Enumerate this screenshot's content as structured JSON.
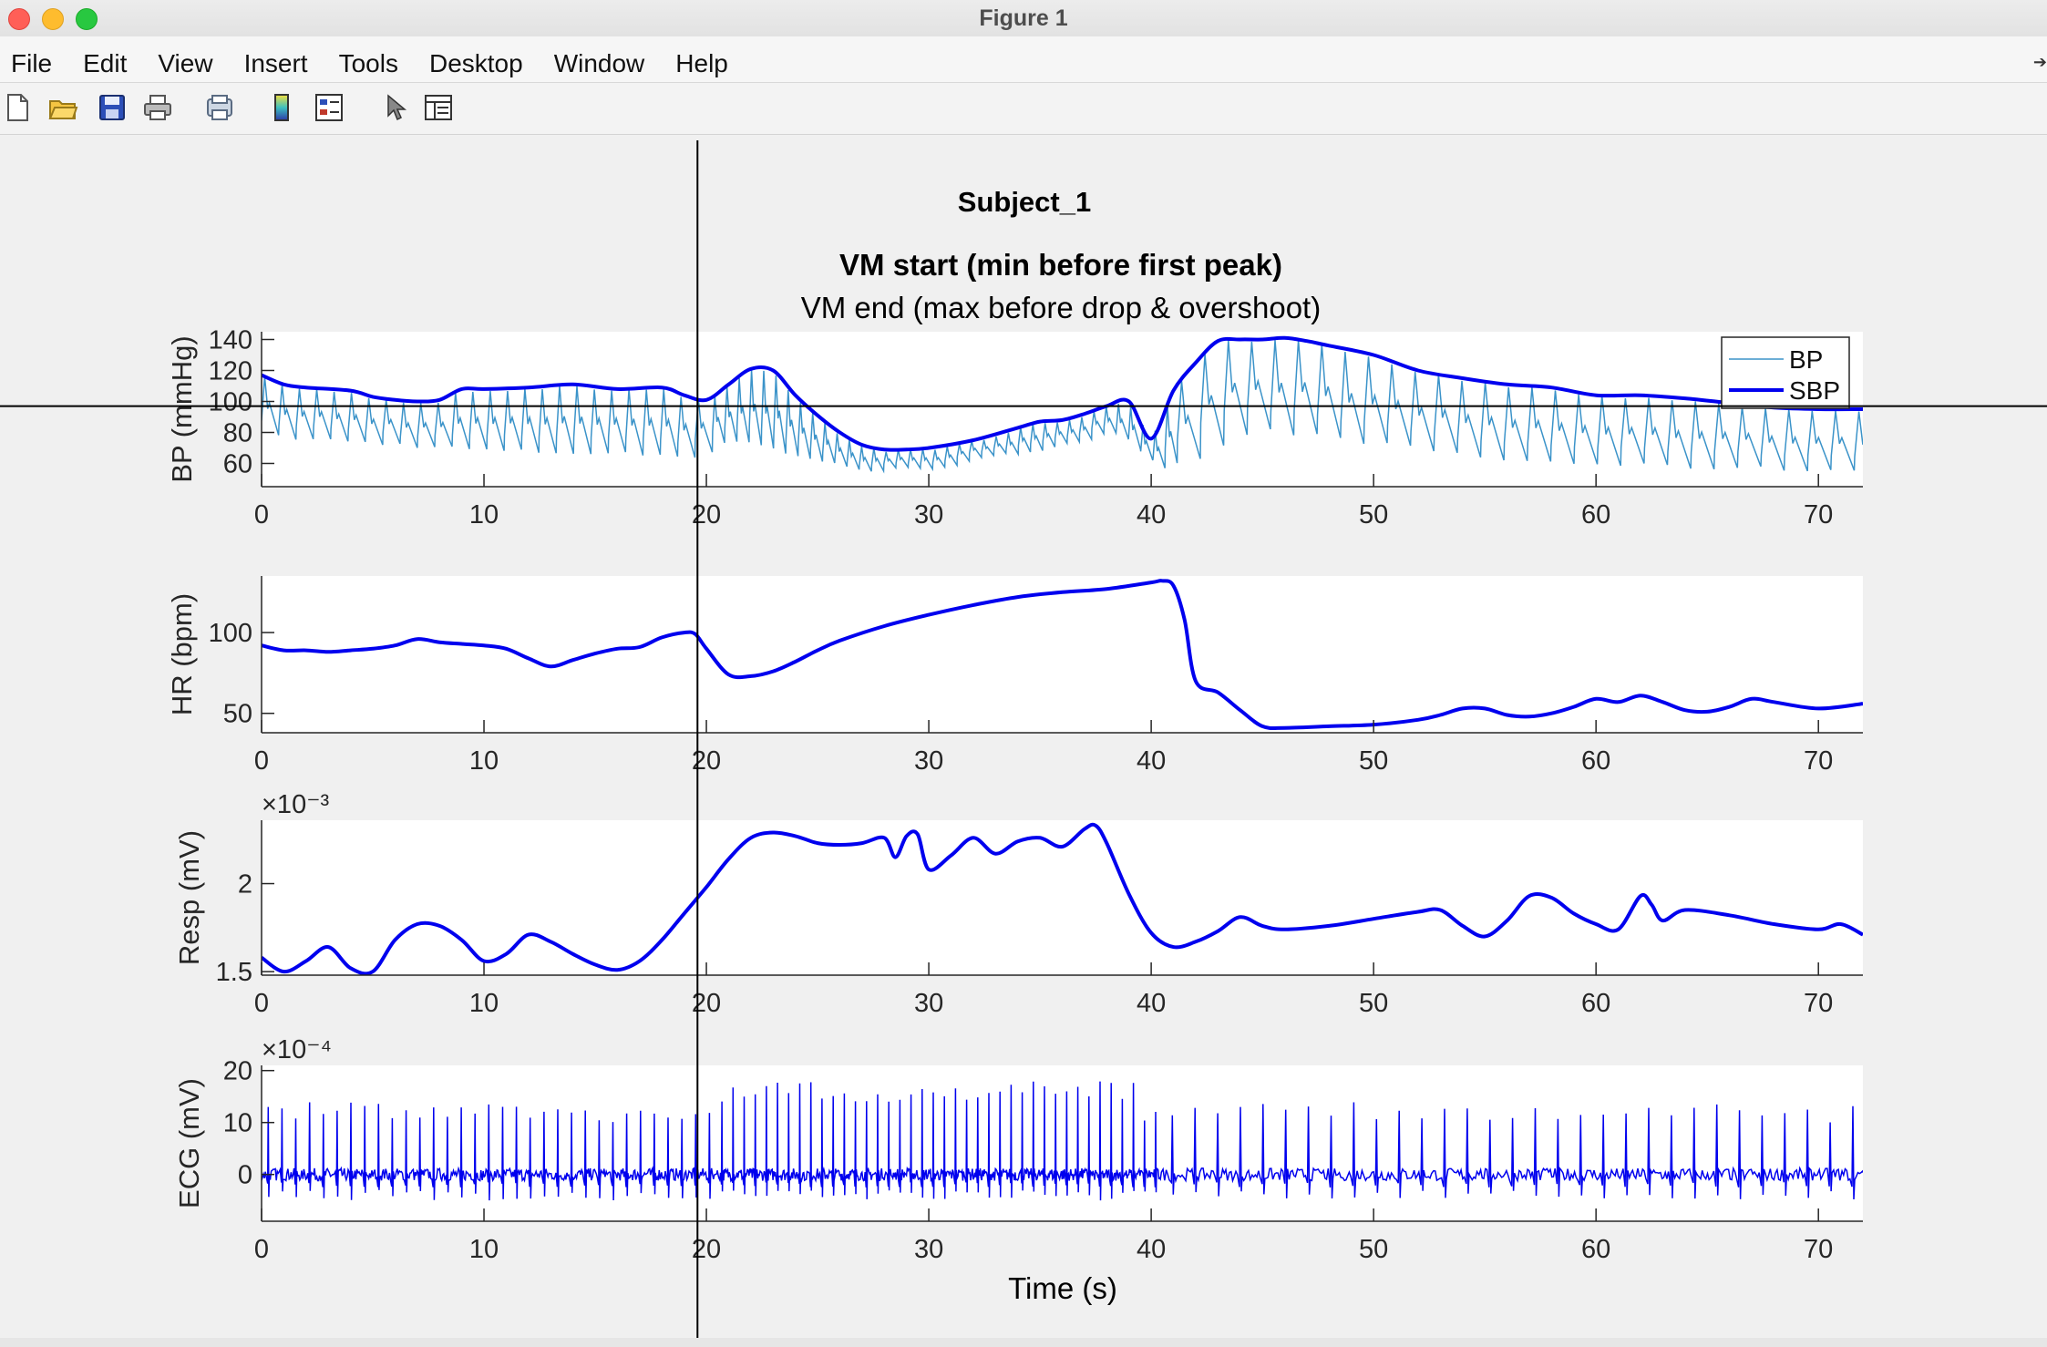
{
  "window": {
    "title": "Figure 1"
  },
  "menu": [
    "File",
    "Edit",
    "View",
    "Insert",
    "Tools",
    "Desktop",
    "Window",
    "Help"
  ],
  "toolbar_icons": [
    "new-figure-icon",
    "open-file-icon",
    "save-icon",
    "print-icon",
    "print-preview-icon",
    "colorbar-icon",
    "legend-icon",
    "pointer-icon",
    "property-inspector-icon"
  ],
  "figure": {
    "title": "Subject_1",
    "subtitle1": "VM start (min before first peak)",
    "subtitle2": "VM end (max before drop & overshoot)",
    "xlabel": "Time (s)",
    "crosshair": {
      "x": 19.6,
      "y_bp": 97
    }
  },
  "chart_data": [
    {
      "type": "line",
      "ylabel": "BP (mmHg)",
      "xlim": [
        0,
        72
      ],
      "ylim": [
        45,
        145
      ],
      "yticks": [
        60,
        80,
        100,
        120,
        140
      ],
      "xticks": [
        0,
        10,
        20,
        30,
        40,
        50,
        60,
        70
      ],
      "legend": {
        "position": "top-right",
        "entries": [
          "BP",
          "SBP"
        ]
      },
      "series": [
        {
          "name": "BP",
          "color": "#3b93c9",
          "width": 1.5,
          "generated": "pulsatile between SBP envelope and diastolic trace"
        },
        {
          "name": "SBP",
          "color": "#0000ee",
          "width": 4,
          "x": [
            0,
            1,
            2,
            4,
            5,
            6,
            7,
            8,
            9,
            10,
            12,
            14,
            16,
            18,
            19,
            20,
            21,
            22,
            23,
            24,
            25,
            26,
            27,
            28,
            29,
            30,
            32,
            34,
            35,
            36,
            37,
            38,
            39,
            40,
            41,
            42,
            43,
            44,
            45,
            46,
            47,
            48,
            50,
            52,
            54,
            56,
            58,
            60,
            62,
            64,
            66,
            68,
            70,
            72
          ],
          "y": [
            117,
            111,
            109,
            107,
            103,
            101,
            100,
            101,
            108,
            108,
            109,
            111,
            108,
            109,
            104,
            101,
            111,
            121,
            120,
            104,
            91,
            80,
            72,
            69,
            69,
            70,
            75,
            83,
            87,
            88,
            92,
            97,
            100,
            76,
            107,
            125,
            139,
            140,
            140,
            141,
            139,
            136,
            130,
            120,
            115,
            111,
            109,
            104,
            104,
            102,
            99,
            96,
            95,
            95
          ]
        }
      ]
    },
    {
      "type": "line",
      "ylabel": "HR (bpm)",
      "xlim": [
        0,
        72
      ],
      "ylim": [
        38,
        135
      ],
      "yticks": [
        50,
        100
      ],
      "xticks": [
        0,
        10,
        20,
        30,
        40,
        50,
        60,
        70
      ],
      "series": [
        {
          "name": "",
          "color": "#0000ee",
          "width": 4,
          "x": [
            0,
            1,
            2,
            3,
            4,
            5,
            6,
            7,
            8,
            9,
            10,
            11,
            12,
            13,
            14,
            15,
            16,
            17,
            18,
            19,
            19.5,
            20,
            21,
            22,
            23,
            24,
            25,
            26,
            28,
            30,
            32,
            34,
            36,
            38,
            40,
            40.5,
            41,
            41.5,
            42,
            43,
            44,
            45,
            46,
            48,
            50,
            52,
            53,
            54,
            55,
            56,
            57,
            58,
            59,
            60,
            61,
            62,
            63,
            64,
            65,
            66,
            67,
            68,
            70,
            72
          ],
          "y": [
            92,
            89,
            89,
            88,
            89,
            90,
            92,
            96,
            94,
            93,
            92,
            90,
            84,
            79,
            83,
            87,
            90,
            91,
            97,
            100,
            99,
            90,
            74,
            73,
            76,
            82,
            89,
            95,
            104,
            111,
            117,
            122,
            125,
            127,
            131,
            132,
            129,
            108,
            70,
            63,
            52,
            42,
            41,
            42,
            43,
            46,
            49,
            53,
            53,
            49,
            48,
            50,
            54,
            59,
            57,
            61,
            57,
            52,
            51,
            54,
            59,
            57,
            53,
            56
          ]
        }
      ]
    },
    {
      "type": "line",
      "ylabel": "Resp (mV)",
      "exponent_label": "×10⁻³",
      "xlim": [
        0,
        72
      ],
      "ylim": [
        1.48,
        2.36
      ],
      "yticks": [
        1.5,
        2
      ],
      "xticks": [
        0,
        10,
        20,
        30,
        40,
        50,
        60,
        70
      ],
      "series": [
        {
          "name": "",
          "color": "#0000ee",
          "width": 4,
          "x": [
            0,
            1,
            2,
            3,
            4,
            5,
            6,
            7,
            8,
            9,
            10,
            11,
            12,
            13,
            14,
            15,
            16,
            17,
            18,
            19,
            20,
            21,
            22,
            23,
            24,
            25,
            26,
            27,
            28,
            28.5,
            29,
            29.5,
            30,
            31,
            32,
            33,
            34,
            35,
            36,
            37,
            37.5,
            38,
            39,
            40,
            41,
            42,
            43,
            44,
            45,
            46,
            48,
            50,
            52,
            53,
            54,
            55,
            56,
            57,
            58,
            59,
            60,
            61,
            62,
            62.5,
            63,
            64,
            66,
            68,
            70,
            71,
            72
          ],
          "y": [
            1.58,
            1.5,
            1.56,
            1.64,
            1.52,
            1.5,
            1.68,
            1.77,
            1.76,
            1.68,
            1.56,
            1.6,
            1.71,
            1.67,
            1.6,
            1.54,
            1.51,
            1.56,
            1.68,
            1.83,
            1.98,
            2.14,
            2.26,
            2.29,
            2.27,
            2.23,
            2.22,
            2.23,
            2.26,
            2.15,
            2.27,
            2.28,
            2.08,
            2.16,
            2.26,
            2.17,
            2.24,
            2.26,
            2.21,
            2.31,
            2.33,
            2.23,
            1.94,
            1.72,
            1.64,
            1.67,
            1.73,
            1.81,
            1.76,
            1.74,
            1.76,
            1.8,
            1.84,
            1.85,
            1.76,
            1.7,
            1.79,
            1.93,
            1.92,
            1.83,
            1.77,
            1.74,
            1.93,
            1.88,
            1.79,
            1.85,
            1.82,
            1.77,
            1.74,
            1.77,
            1.71
          ]
        }
      ]
    },
    {
      "type": "line",
      "ylabel": "ECG (mV)",
      "exponent_label": "×10⁻⁴",
      "xlim": [
        0,
        72
      ],
      "ylim": [
        -9,
        21
      ],
      "yticks": [
        0,
        10,
        20
      ],
      "xticks": [
        0,
        10,
        20,
        30,
        40,
        50,
        60,
        70
      ],
      "series": [
        {
          "name": "",
          "color": "#0000ee",
          "width": 1.5,
          "generated": "QRS spikes ~11-18 with baseline noise near 0; faster rate 20-40 s"
        }
      ]
    }
  ]
}
